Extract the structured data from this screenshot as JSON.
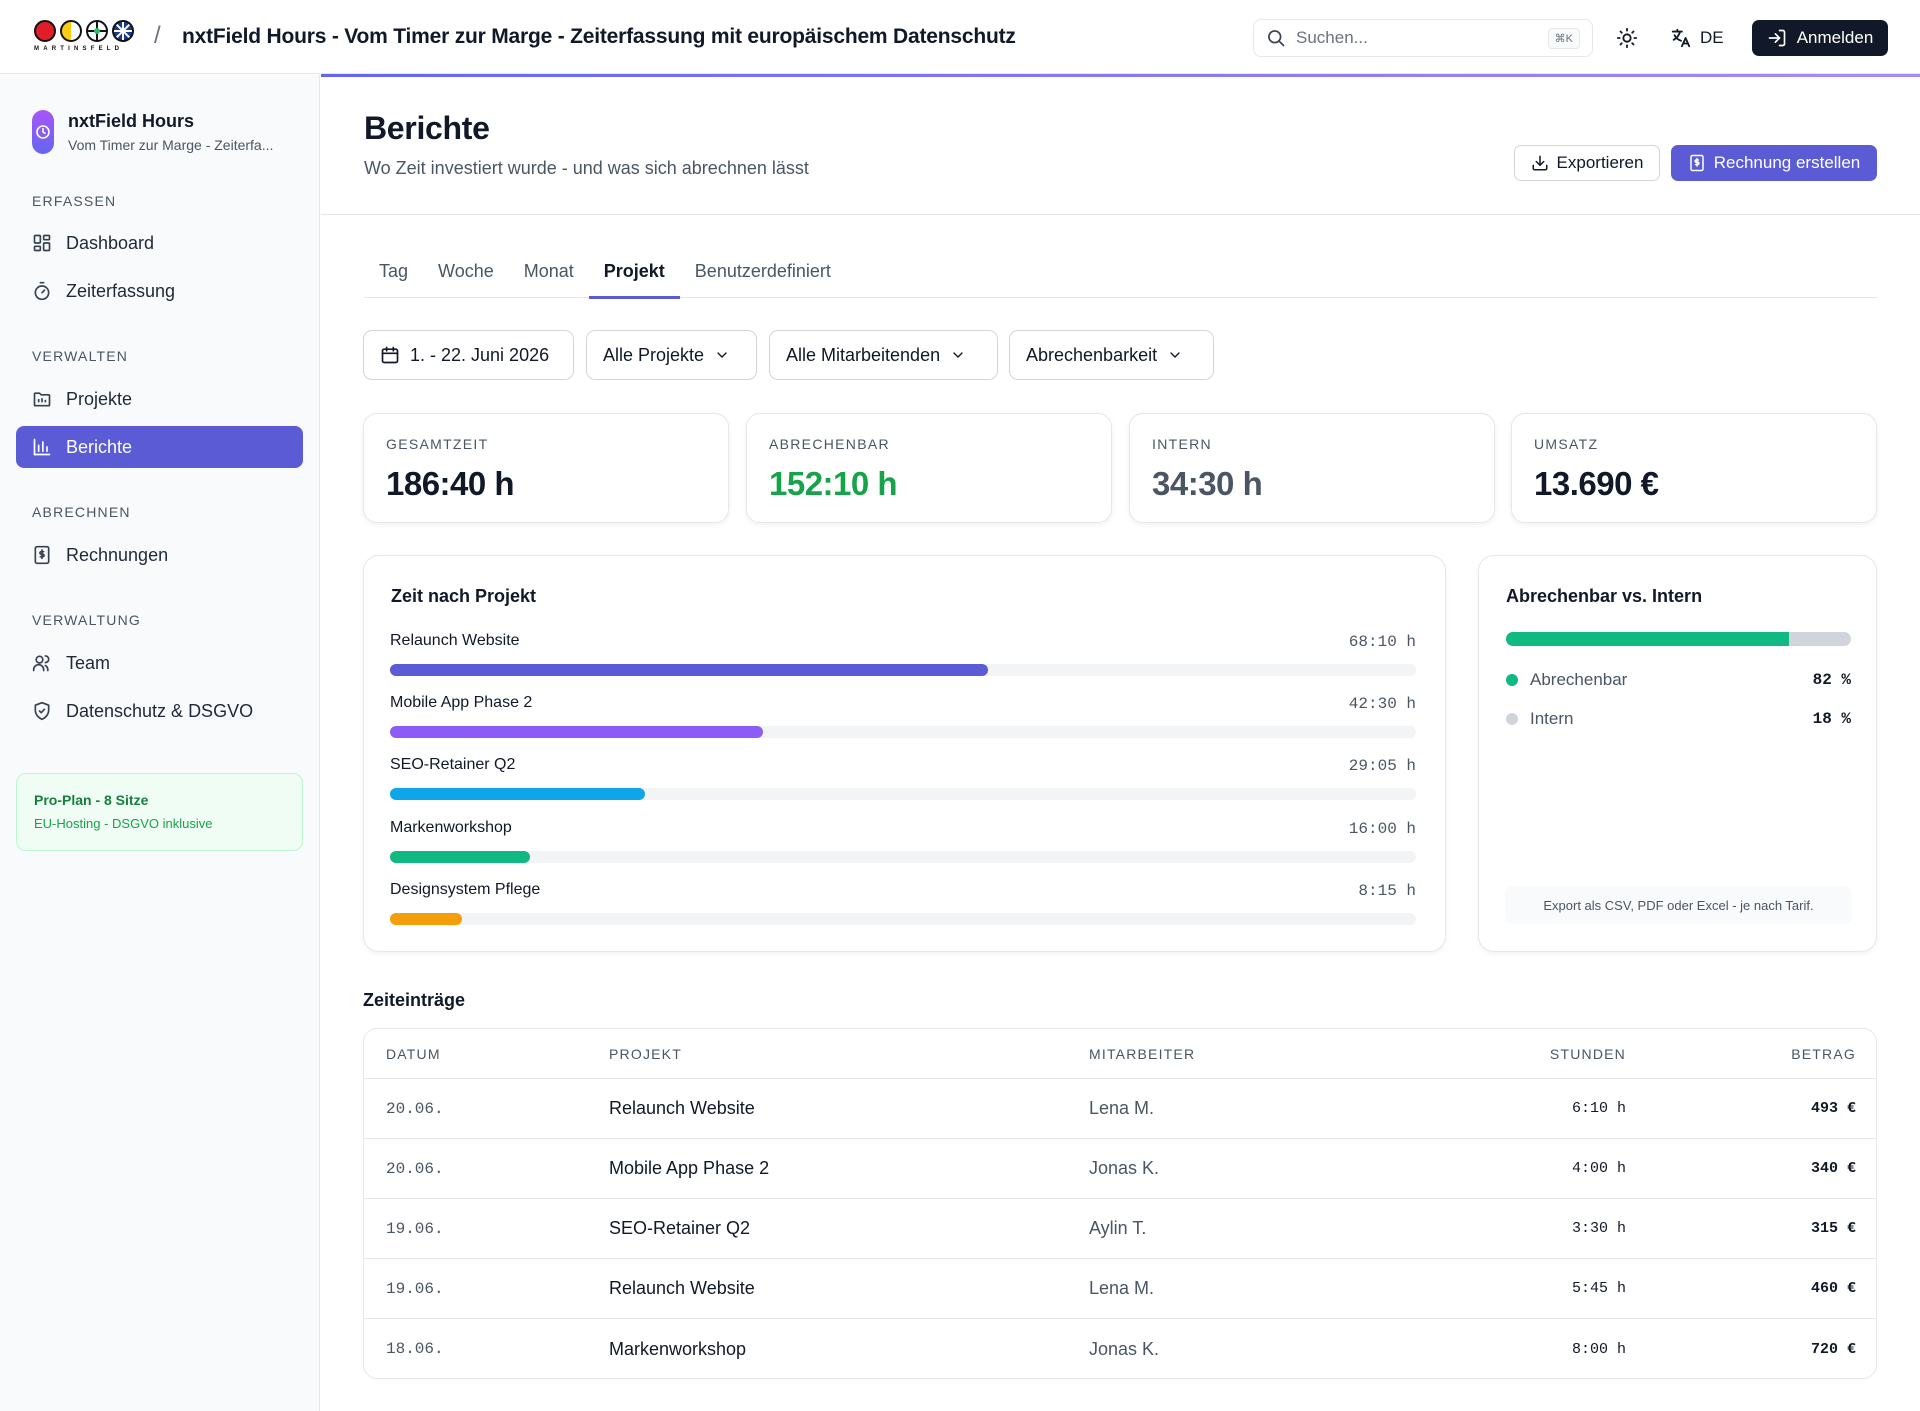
{
  "header": {
    "logo_text": "MARTINSFELD",
    "title": "nxtField Hours - Vom Timer zur Marge - Zeiterfassung mit europäischem Datenschutz",
    "search_placeholder": "Suchen...",
    "search_shortcut": "⌘K",
    "language": "DE",
    "login_label": "Anmelden"
  },
  "sidebar": {
    "workspace_name": "nxtField Hours",
    "workspace_sub": "Vom Timer zur Marge - Zeiterfa...",
    "sections": [
      {
        "label": "ERFASSEN",
        "items": [
          {
            "label": "Dashboard",
            "icon": "dashboard-icon"
          },
          {
            "label": "Zeiterfassung",
            "icon": "stopwatch-icon"
          }
        ]
      },
      {
        "label": "VERWALTEN",
        "items": [
          {
            "label": "Projekte",
            "icon": "folder-icon"
          },
          {
            "label": "Berichte",
            "icon": "chart-icon",
            "active": true
          }
        ]
      },
      {
        "label": "ABRECHNEN",
        "items": [
          {
            "label": "Rechnungen",
            "icon": "invoice-icon"
          }
        ]
      },
      {
        "label": "VERWALTUNG",
        "items": [
          {
            "label": "Team",
            "icon": "users-icon"
          },
          {
            "label": "Datenschutz & DSGVO",
            "icon": "shield-icon"
          }
        ]
      }
    ],
    "plan": {
      "title": "Pro-Plan - 8 Sitze",
      "subtitle": "EU-Hosting - DSGVO inklusive"
    }
  },
  "page": {
    "title": "Berichte",
    "subtitle": "Wo Zeit investiert wurde - und was sich abrechnen lässt",
    "export_label": "Exportieren",
    "invoice_label": "Rechnung erstellen"
  },
  "tabs": [
    {
      "label": "Tag"
    },
    {
      "label": "Woche"
    },
    {
      "label": "Monat"
    },
    {
      "label": "Projekt",
      "active": true
    },
    {
      "label": "Benutzerdefiniert"
    }
  ],
  "filters": {
    "date_range": "1. - 22. Juni 2026",
    "projects": "Alle Projekte",
    "employees": "Alle Mitarbeitenden",
    "billability": "Abrechenbarkeit"
  },
  "kpis": [
    {
      "label": "GESAMTZEIT",
      "value": "186:40 h",
      "color": "#111827"
    },
    {
      "label": "ABRECHENBAR",
      "value": "152:10 h",
      "color": "#16a34a"
    },
    {
      "label": "INTERN",
      "value": "34:30 h",
      "color": "#4b5563"
    },
    {
      "label": "UMSATZ",
      "value": "13.690 €",
      "color": "#111827"
    }
  ],
  "time_by_project": {
    "title": "Zeit nach Projekt",
    "max_hours": 117,
    "rows": [
      {
        "name": "Relaunch Website",
        "hours_label": "68:10 h",
        "hours": 68.17,
        "color": "#5b5bd6"
      },
      {
        "name": "Mobile App Phase 2",
        "hours_label": "42:30 h",
        "hours": 42.5,
        "color": "#8b5cf6"
      },
      {
        "name": "SEO-Retainer Q2",
        "hours_label": "29:05 h",
        "hours": 29.08,
        "color": "#0ea5e9"
      },
      {
        "name": "Markenworkshop",
        "hours_label": "16:00 h",
        "hours": 16.0,
        "color": "#10b981"
      },
      {
        "name": "Designsystem Pflege",
        "hours_label": "8:15 h",
        "hours": 8.25,
        "color": "#f59e0b"
      }
    ]
  },
  "billable_split": {
    "title": "Abrechenbar vs. Intern",
    "billable_fraction": 0.82,
    "items": [
      {
        "label": "Abrechenbar",
        "pct": "82 %",
        "color": "#10b981"
      },
      {
        "label": "Intern",
        "pct": "18 %",
        "color": "#d1d5db"
      }
    ],
    "note": "Export als CSV, PDF oder Excel - je nach Tarif."
  },
  "entries": {
    "title": "Zeiteinträge",
    "columns": {
      "date": "DATUM",
      "project": "PROJEKT",
      "employee": "MITARBEITER",
      "hours": "STUNDEN",
      "amount": "BETRAG"
    },
    "rows": [
      {
        "date": "20.06.",
        "project": "Relaunch Website",
        "employee": "Lena M.",
        "hours": "6:10 h",
        "amount": "493 €"
      },
      {
        "date": "20.06.",
        "project": "Mobile App Phase 2",
        "employee": "Jonas K.",
        "hours": "4:00 h",
        "amount": "340 €"
      },
      {
        "date": "19.06.",
        "project": "SEO-Retainer Q2",
        "employee": "Aylin T.",
        "hours": "3:30 h",
        "amount": "315 €"
      },
      {
        "date": "19.06.",
        "project": "Relaunch Website",
        "employee": "Lena M.",
        "hours": "5:45 h",
        "amount": "460 €"
      },
      {
        "date": "18.06.",
        "project": "Markenworkshop",
        "employee": "Jonas K.",
        "hours": "8:00 h",
        "amount": "720 €"
      }
    ]
  }
}
